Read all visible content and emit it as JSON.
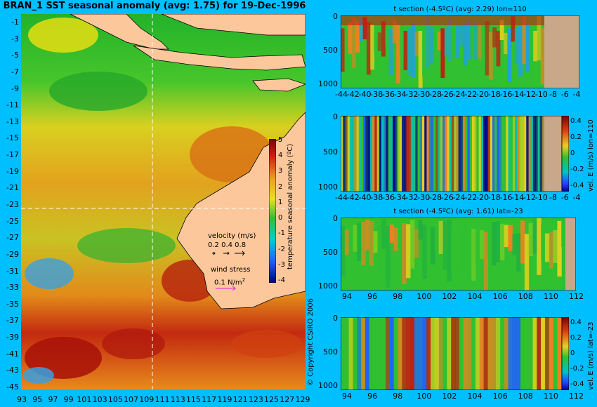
{
  "map": {
    "title": "BRAN_1 SST seasonal anomaly (avg: 1.75) for 19-Dec-1996",
    "lat_labels": [
      "-1",
      "-3",
      "-5",
      "-7",
      "-9",
      "-11",
      "-13",
      "-15",
      "-17",
      "-19",
      "-21",
      "-23",
      "-25",
      "-27",
      "-29",
      "-31",
      "-33",
      "-35",
      "-37",
      "-39",
      "-41",
      "-43",
      "-45"
    ],
    "lon_labels": [
      "93",
      "95",
      "97",
      "99",
      "101",
      "103",
      "105",
      "107",
      "109",
      "111",
      "113",
      "115",
      "117",
      "119",
      "121",
      "123",
      "125",
      "127",
      "129"
    ],
    "colorbar": {
      "label": "temperature seasonal anomaly (ºC)",
      "ticks": [
        "5",
        "4",
        "3",
        "2",
        "1",
        "0",
        "-1",
        "-2",
        "-3",
        "-4"
      ],
      "range": [
        -4,
        5
      ]
    },
    "legend": {
      "velocity_label": "velocity (m/s)",
      "velocity_scale": "0.2 0.4 0.8",
      "wind_label": "wind stress",
      "wind_scale": "0.1 N/m",
      "wind_exp": "2"
    },
    "section_lines": {
      "lon": 110,
      "lat": -23
    },
    "copyright": "© Copyright CSIRO 2006",
    "colors": {
      "land": "#fcc89b",
      "background": "#00bfff"
    }
  },
  "panels": [
    {
      "title": "t section (-4.5ºC) (avg: 2.29) lon=110",
      "y_ticks": [
        "0",
        "500",
        "1000"
      ],
      "x_ticks": [
        "-44",
        "-42",
        "-40",
        "-38",
        "-36",
        "-34",
        "-32",
        "-30",
        "-28",
        "-26",
        "-24",
        "-22",
        "-20",
        "-18",
        "-16",
        "-14",
        "-12",
        "-10",
        "-8",
        "-6",
        "-4"
      ]
    },
    {
      "title": "",
      "y_ticks": [
        "0",
        "500",
        "1000"
      ],
      "x_ticks": [
        "-44",
        "-42",
        "-40",
        "-38",
        "-36",
        "-34",
        "-32",
        "-30",
        "-28",
        "-26",
        "-24",
        "-22",
        "-20",
        "-18",
        "-16",
        "-14",
        "-12",
        "-10",
        "-8",
        "-6",
        "-4"
      ],
      "colorbar_label": "vel. E (m/s) lon=110",
      "colorbar_ticks": [
        "0.4",
        "0.2",
        "0",
        "-0.2",
        "-0.4"
      ]
    },
    {
      "title": "t section (-4.5ºC) (avg: 1.61) lat=-23",
      "y_ticks": [
        "0",
        "500",
        "1000"
      ],
      "x_ticks": [
        "94",
        "96",
        "98",
        "100",
        "102",
        "104",
        "106",
        "108",
        "110",
        "112"
      ]
    },
    {
      "title": "",
      "y_ticks": [
        "0",
        "500",
        "1000"
      ],
      "x_ticks": [
        "94",
        "96",
        "98",
        "100",
        "102",
        "104",
        "106",
        "108",
        "110",
        "112"
      ],
      "colorbar_label": "vel. E (m/s) lat=-23",
      "colorbar_ticks": [
        "0.4",
        "0.2",
        "0",
        "-0.2",
        "-0.4"
      ]
    }
  ]
}
